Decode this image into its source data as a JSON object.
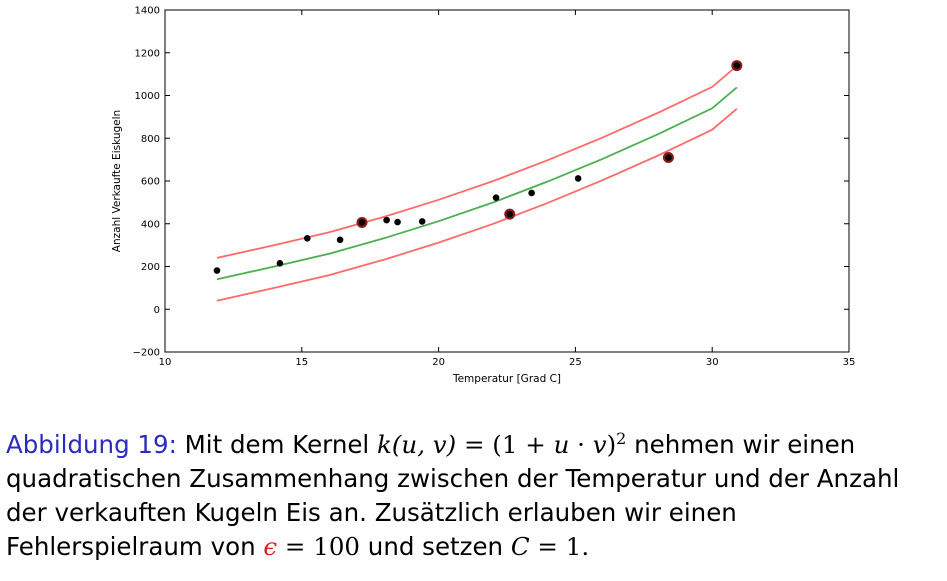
{
  "chart_data": {
    "type": "scatter",
    "title": "",
    "xlabel": "Temperatur [Grad C]",
    "ylabel": "Anzahl Verkaufte Eiskugeln",
    "xlim": [
      10,
      35
    ],
    "ylim": [
      -200,
      1400
    ],
    "xticks": [
      "10",
      "15",
      "20",
      "25",
      "30",
      "35"
    ],
    "yticks": [
      "−200",
      "0",
      "200",
      "400",
      "600",
      "800",
      "1000",
      "1200",
      "1400"
    ],
    "grid": false,
    "colors": {
      "points": "#000000",
      "support_vectors": "#8b1a1a",
      "fit": "#4caf50",
      "margin": "#ff6b6b"
    },
    "points": [
      {
        "x": 11.9,
        "y": 181
      },
      {
        "x": 14.2,
        "y": 215
      },
      {
        "x": 15.2,
        "y": 332
      },
      {
        "x": 16.4,
        "y": 325
      },
      {
        "x": 17.2,
        "y": 406
      },
      {
        "x": 18.1,
        "y": 417
      },
      {
        "x": 18.5,
        "y": 408
      },
      {
        "x": 19.4,
        "y": 411
      },
      {
        "x": 22.1,
        "y": 522
      },
      {
        "x": 22.6,
        "y": 445
      },
      {
        "x": 23.4,
        "y": 544
      },
      {
        "x": 25.1,
        "y": 612
      },
      {
        "x": 28.4,
        "y": 710
      },
      {
        "x": 30.9,
        "y": 1140
      }
    ],
    "support_vectors": [
      {
        "x": 17.2,
        "y": 406
      },
      {
        "x": 22.6,
        "y": 445
      },
      {
        "x": 28.4,
        "y": 710
      },
      {
        "x": 30.9,
        "y": 1140
      }
    ],
    "fit_curve": {
      "x": [
        11.9,
        14,
        16,
        18,
        20,
        22,
        24,
        26,
        28,
        30,
        30.9
      ],
      "y": [
        140,
        200,
        260,
        332,
        412,
        500,
        598,
        704,
        818,
        940,
        1038
      ]
    },
    "margin_upper": {
      "x": [
        11.9,
        14,
        16,
        18,
        20,
        22,
        24,
        26,
        28,
        30,
        30.9
      ],
      "y": [
        240,
        300,
        360,
        432,
        512,
        600,
        698,
        804,
        918,
        1040,
        1138
      ]
    },
    "margin_lower": {
      "x": [
        11.9,
        14,
        16,
        18,
        20,
        22,
        24,
        26,
        28,
        30,
        30.9
      ],
      "y": [
        40,
        100,
        160,
        232,
        312,
        400,
        498,
        604,
        718,
        840,
        938
      ]
    }
  },
  "caption": {
    "label": "Abbildung 19:",
    "line1_text": " Mit dem Kernel ",
    "kernel_lhs": "k(u, v)",
    "kernel_eq": " = (1 + ",
    "kernel_u": "u",
    "kernel_dot": " · ",
    "kernel_v": "v",
    "kernel_close": ")",
    "kernel_exp": "2",
    "line1_tail": " nehmen wir einen",
    "line2": "quadratischen Zusammenhang zwischen der Temperatur und der Anzahl",
    "line3": "der verkauften Kugeln Eis an. Zusätzlich erlauben wir einen",
    "line4_text": "Fehlerspielraum von ",
    "epsilon": "ϵ",
    "eps_value": " = 100",
    "line4_mid": " und setzen ",
    "c_symbol": "C",
    "c_value": " = 1.",
    "line4_end": ""
  }
}
